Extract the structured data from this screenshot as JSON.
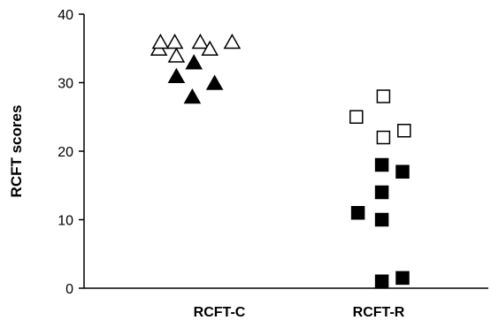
{
  "chart_data": {
    "type": "scatter",
    "title": "",
    "xlabel": "",
    "ylabel": "RCFT scores",
    "ylim": [
      0,
      40
    ],
    "yticks": [
      0,
      10,
      20,
      30,
      40
    ],
    "categories": [
      "RCFT-C",
      "RCFT-R"
    ],
    "grid": false,
    "legend": "none",
    "series": [
      {
        "category": "RCFT-C",
        "marker": "triangle",
        "fill": "open",
        "points": [
          {
            "x": 0.62,
            "y": 35
          },
          {
            "x": 0.63,
            "y": 36
          },
          {
            "x": 0.72,
            "y": 36
          },
          {
            "x": 0.73,
            "y": 34
          },
          {
            "x": 0.88,
            "y": 36
          },
          {
            "x": 0.94,
            "y": 35
          },
          {
            "x": 1.08,
            "y": 36
          }
        ]
      },
      {
        "category": "RCFT-C",
        "marker": "triangle",
        "fill": "filled",
        "points": [
          {
            "x": 0.73,
            "y": 31
          },
          {
            "x": 0.83,
            "y": 28
          },
          {
            "x": 0.84,
            "y": 33
          },
          {
            "x": 0.97,
            "y": 30
          }
        ]
      },
      {
        "category": "RCFT-R",
        "marker": "square",
        "fill": "open",
        "points": [
          {
            "x": 1.86,
            "y": 25
          },
          {
            "x": 2.03,
            "y": 28
          },
          {
            "x": 2.03,
            "y": 22
          },
          {
            "x": 2.16,
            "y": 23
          }
        ]
      },
      {
        "category": "RCFT-R",
        "marker": "square",
        "fill": "filled",
        "points": [
          {
            "x": 1.87,
            "y": 11
          },
          {
            "x": 2.02,
            "y": 18
          },
          {
            "x": 2.02,
            "y": 14
          },
          {
            "x": 2.02,
            "y": 10
          },
          {
            "x": 2.02,
            "y": 1
          },
          {
            "x": 2.15,
            "y": 17
          },
          {
            "x": 2.15,
            "y": 1.5
          }
        ]
      }
    ],
    "colors": {
      "marker": "#000000",
      "open_fill": "#ffffff",
      "axis": "#000000"
    }
  }
}
